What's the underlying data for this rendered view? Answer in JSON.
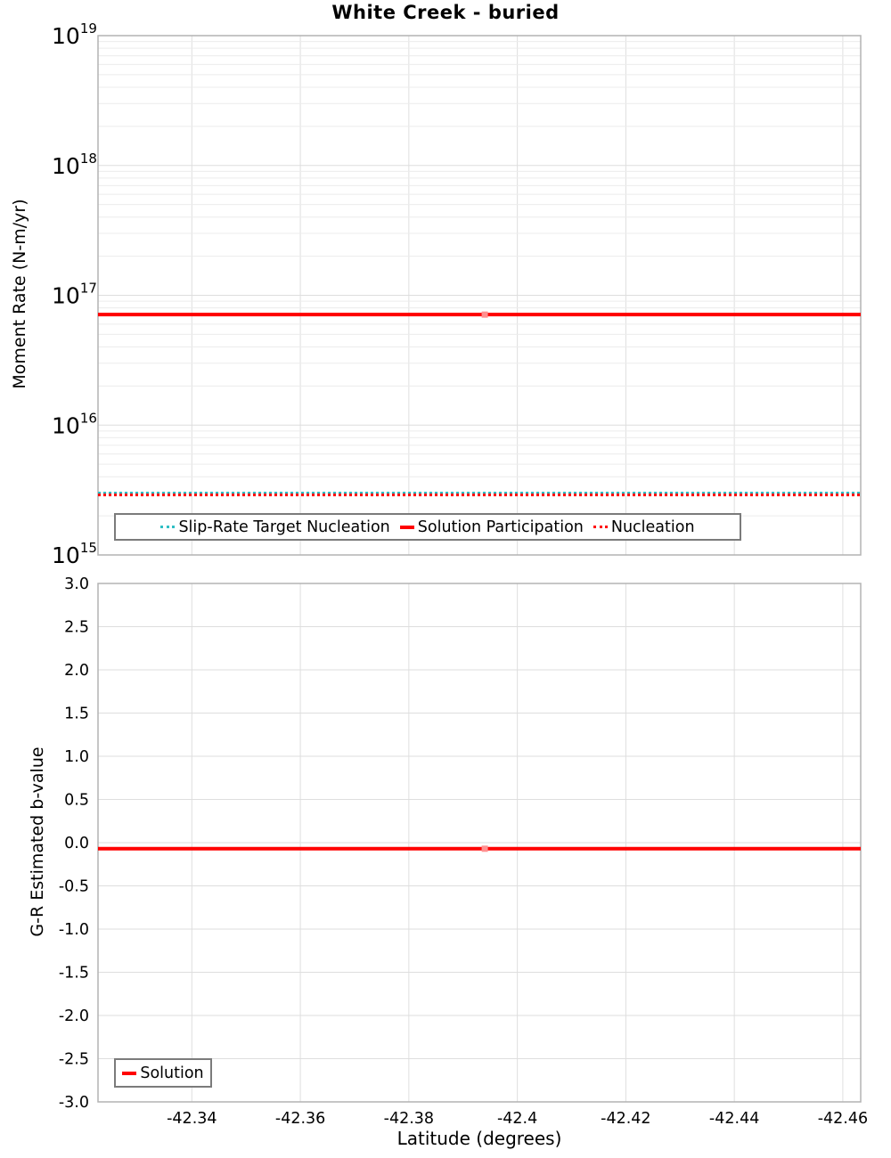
{
  "title": "White Creek - buried",
  "style": {
    "accent_red": "#ff0000",
    "accent_cyan": "#2fbec4",
    "marker_red": "#ff9090",
    "grid_minor": "#ececec",
    "grid_major": "#dedede",
    "plot_border": "#b3b3b3",
    "legend_border": "#7b7b7b",
    "text": "#000000",
    "background": "#ffffff"
  },
  "chart_data": [
    {
      "type": "line",
      "title": "White Creek - buried",
      "ylabel": "Moment Rate (N-m/yr)",
      "xlabel": "Latitude (degrees)",
      "yscale": "log",
      "ylim": [
        1000000000000000.0,
        1e+19
      ],
      "y_tick_exponents": [
        19,
        18,
        17,
        16,
        15
      ],
      "xlim": [
        -42.3227,
        -42.4633
      ],
      "x_reversed": true,
      "x_tick_values": [
        -42.34,
        -42.36,
        -42.38,
        -42.4,
        -42.42,
        -42.44,
        -42.46
      ],
      "x_tick_labels": [
        "-42.34",
        "-42.36",
        "-42.38",
        "-42.4",
        "-42.42",
        "-42.44",
        "-42.46"
      ],
      "show_x_tick_labels": false,
      "grid": true,
      "legend_position": "inside-bottom",
      "series": [
        {
          "name": "Slip-Rate Target Nucleation",
          "color": "#2fbec4",
          "style": "dotted",
          "x": [
            -42.3227,
            -42.394,
            -42.4633
          ],
          "y": [
            3000000000000000.0,
            3000000000000000.0,
            3000000000000000.0
          ]
        },
        {
          "name": "Solution Participation",
          "color": "#ff0000",
          "style": "solid",
          "x": [
            -42.3227,
            -42.394,
            -42.4633
          ],
          "y": [
            7.1e+16,
            7.1e+16,
            7.1e+16
          ],
          "marker": "square",
          "marker_x": -42.394,
          "marker_color": "#ff9090"
        },
        {
          "name": "Nucleation",
          "color": "#ff0000",
          "style": "dotted",
          "x": [
            -42.3227,
            -42.394,
            -42.4633
          ],
          "y": [
            2900000000000000.0,
            2900000000000000.0,
            2900000000000000.0
          ]
        }
      ]
    },
    {
      "type": "line",
      "title": "",
      "ylabel": "G-R Estimated b-value",
      "xlabel": "Latitude (degrees)",
      "yscale": "linear",
      "ylim": [
        -3.0,
        3.0
      ],
      "y_tick_values": [
        3.0,
        2.5,
        2.0,
        1.5,
        1.0,
        0.5,
        0.0,
        -0.5,
        -1.0,
        -1.5,
        -2.0,
        -2.5,
        -3.0
      ],
      "y_tick_labels": [
        "3.0",
        "2.5",
        "2.0",
        "1.5",
        "1.0",
        "0.5",
        "0.0",
        "-0.5",
        "-1.0",
        "-1.5",
        "-2.0",
        "-2.5",
        "-3.0"
      ],
      "xlim": [
        -42.3227,
        -42.4633
      ],
      "x_reversed": true,
      "x_tick_values": [
        -42.34,
        -42.36,
        -42.38,
        -42.4,
        -42.42,
        -42.44,
        -42.46
      ],
      "x_tick_labels": [
        "-42.34",
        "-42.36",
        "-42.38",
        "-42.4",
        "-42.42",
        "-42.44",
        "-42.46"
      ],
      "show_x_tick_labels": true,
      "grid": true,
      "legend_position": "inside-bottom-left",
      "series": [
        {
          "name": "Solution",
          "color": "#ff0000",
          "style": "solid",
          "x": [
            -42.3227,
            -42.394,
            -42.4633
          ],
          "y": [
            -0.07,
            -0.07,
            -0.07
          ],
          "marker": "square",
          "marker_x": -42.394,
          "marker_color": "#ff9090"
        }
      ]
    }
  ]
}
